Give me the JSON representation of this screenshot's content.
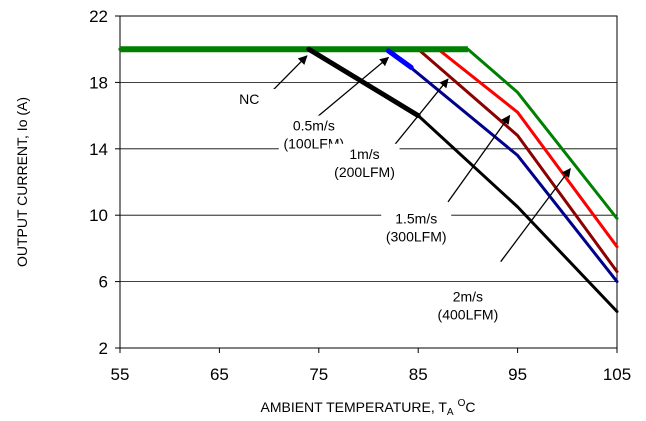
{
  "chart_data": {
    "type": "line",
    "xlabel": "AMBIENT TEMPERATURE, T",
    "xlabel_sub": "A",
    "xlabel_sup": "O",
    "xlabel_unit": "C",
    "ylabel": "OUTPUT CURRENT, Io  (A)",
    "xlim": [
      55,
      105
    ],
    "ylim": [
      2,
      22
    ],
    "xticks": [
      "55",
      "65",
      "75",
      "85",
      "95",
      "105"
    ],
    "yticks": [
      "2",
      "6",
      "10",
      "14",
      "18",
      "22"
    ],
    "grid": "horizontal",
    "series": [
      {
        "name": "NC",
        "color": "#000000",
        "points": [
          [
            55,
            20
          ],
          [
            74,
            20
          ],
          [
            85,
            16
          ],
          [
            95,
            10.5
          ],
          [
            105,
            4.2
          ]
        ]
      },
      {
        "name": "0.5m/s (100LFM)",
        "color": "#00008B",
        "points": [
          [
            55,
            20
          ],
          [
            82,
            20
          ],
          [
            95,
            13.6
          ],
          [
            105,
            6
          ]
        ]
      },
      {
        "name": "1m/s (200LFM)",
        "color": "#8B0000",
        "points": [
          [
            55,
            20
          ],
          [
            85,
            20
          ],
          [
            95,
            14.8
          ],
          [
            105,
            6.6
          ]
        ]
      },
      {
        "name": "1.5m/s (300LFM)",
        "color": "#FF0000",
        "points": [
          [
            55,
            20
          ],
          [
            87,
            20
          ],
          [
            95,
            16.2
          ],
          [
            105,
            8.1
          ]
        ]
      },
      {
        "name": "2m/s (400LFM)",
        "color": "#008000",
        "points": [
          [
            55,
            20
          ],
          [
            90,
            20
          ],
          [
            95,
            17.4
          ],
          [
            105,
            9.8
          ]
        ]
      }
    ],
    "annotations": [
      {
        "lines": [
          "NC"
        ],
        "label_at": [
          68,
          16.7
        ],
        "arrow_from": [
          70,
          17.3
        ],
        "arrow_to": [
          73.8,
          19.6
        ]
      },
      {
        "lines": [
          "0.5m/s",
          "(100LFM)"
        ],
        "label_at": [
          74.5,
          15.1
        ],
        "arrow_from": [
          74,
          15.5
        ],
        "arrow_to": [
          82,
          19.5
        ]
      },
      {
        "lines": [
          "1m/s",
          "(200LFM)"
        ],
        "label_at": [
          79.6,
          13.4
        ],
        "arrow_from": [
          80,
          12.3
        ],
        "arrow_to": [
          88,
          18.2
        ]
      },
      {
        "lines": [
          "1.5m/s",
          "(300LFM)"
        ],
        "label_at": [
          84.8,
          9.5
        ],
        "arrow_from": [
          88,
          10.8
        ],
        "arrow_to": [
          94.2,
          16
        ]
      },
      {
        "lines": [
          "2m/s",
          "(400LFM)"
        ],
        "label_at": [
          90,
          4.8
        ],
        "arrow_from": [
          93.3,
          7.2
        ],
        "arrow_to": [
          100.3,
          12.8
        ]
      }
    ]
  }
}
